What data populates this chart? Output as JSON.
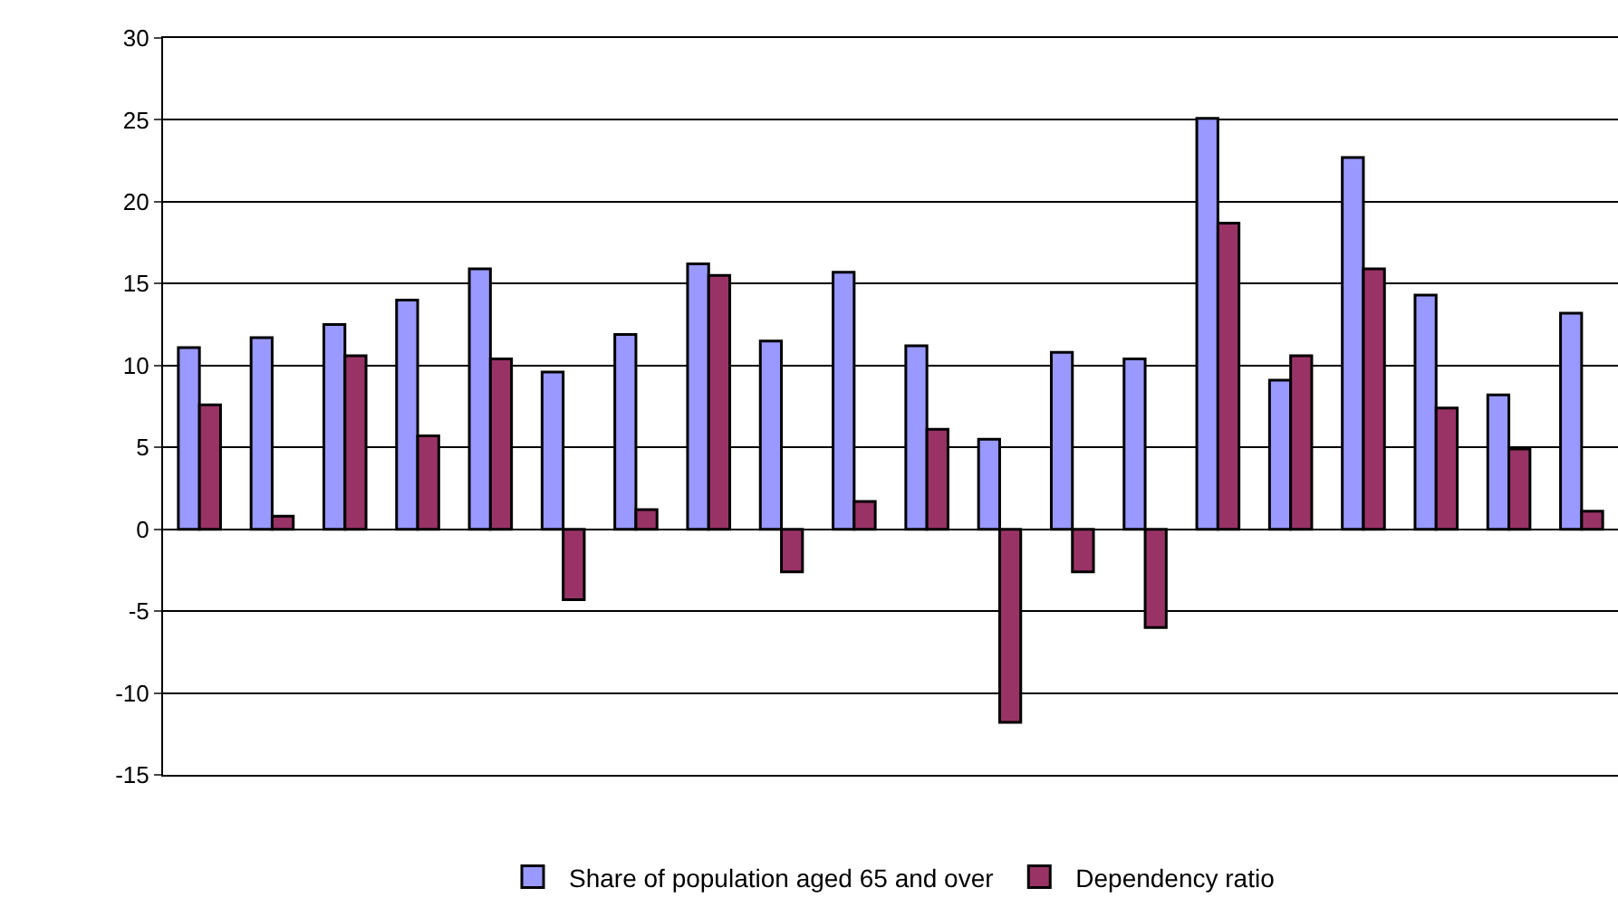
{
  "chart_data": {
    "type": "bar",
    "categories": [
      null,
      null,
      null,
      null,
      null,
      null,
      null,
      null,
      null,
      null,
      null,
      null,
      null,
      null,
      null,
      null,
      null,
      null,
      null,
      null
    ],
    "series": [
      {
        "name": "Share of population aged 65 and over",
        "color": "#9999ff",
        "values": [
          11.1,
          11.7,
          12.5,
          14.0,
          15.9,
          9.6,
          11.9,
          16.2,
          11.5,
          15.7,
          11.2,
          5.5,
          10.8,
          10.4,
          25.1,
          9.1,
          22.7,
          14.3,
          8.2,
          13.2
        ]
      },
      {
        "name": "Dependency ratio",
        "color": "#993366",
        "values": [
          7.6,
          0.8,
          10.6,
          5.7,
          10.4,
          -4.3,
          1.2,
          15.5,
          -2.6,
          1.7,
          6.1,
          -11.8,
          -2.6,
          -6.0,
          18.7,
          10.6,
          15.9,
          7.4,
          4.9,
          1.1
        ]
      }
    ],
    "ylim": [
      -15,
      30
    ],
    "yticks": [
      -15,
      -10,
      -5,
      0,
      5,
      10,
      15,
      20,
      25,
      30
    ],
    "grid": "y",
    "legend": "bottom"
  }
}
